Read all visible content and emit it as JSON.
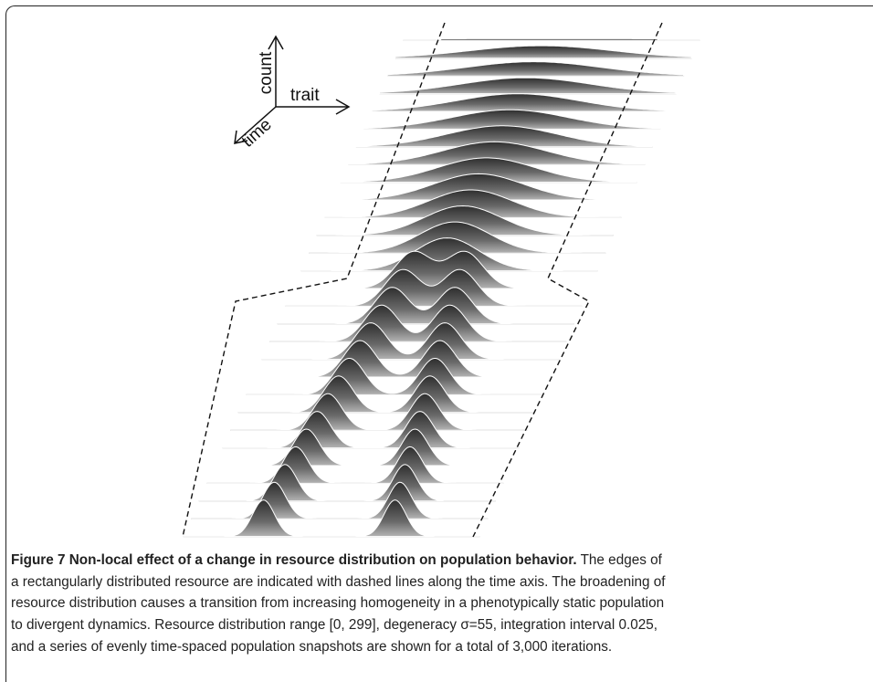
{
  "figure": {
    "axes": {
      "count": "count",
      "trait": "trait",
      "time": "time"
    }
  },
  "caption": {
    "title": "Figure 7 Non-local effect of a change in resource distribution on population behavior.",
    "lines": [
      "The edges of",
      "a rectangularly distributed resource are indicated with dashed lines along the time axis. The broadening of",
      "resource distribution causes a transition from increasing homogeneity in a phenotypically static population",
      "to divergent dynamics. Resource distribution range [0, 299], degeneracy σ=55, integration interval 0.025,",
      "and a series of evenly time-spaced population snapshots are shown for a total of 3,000 iterations."
    ]
  }
}
